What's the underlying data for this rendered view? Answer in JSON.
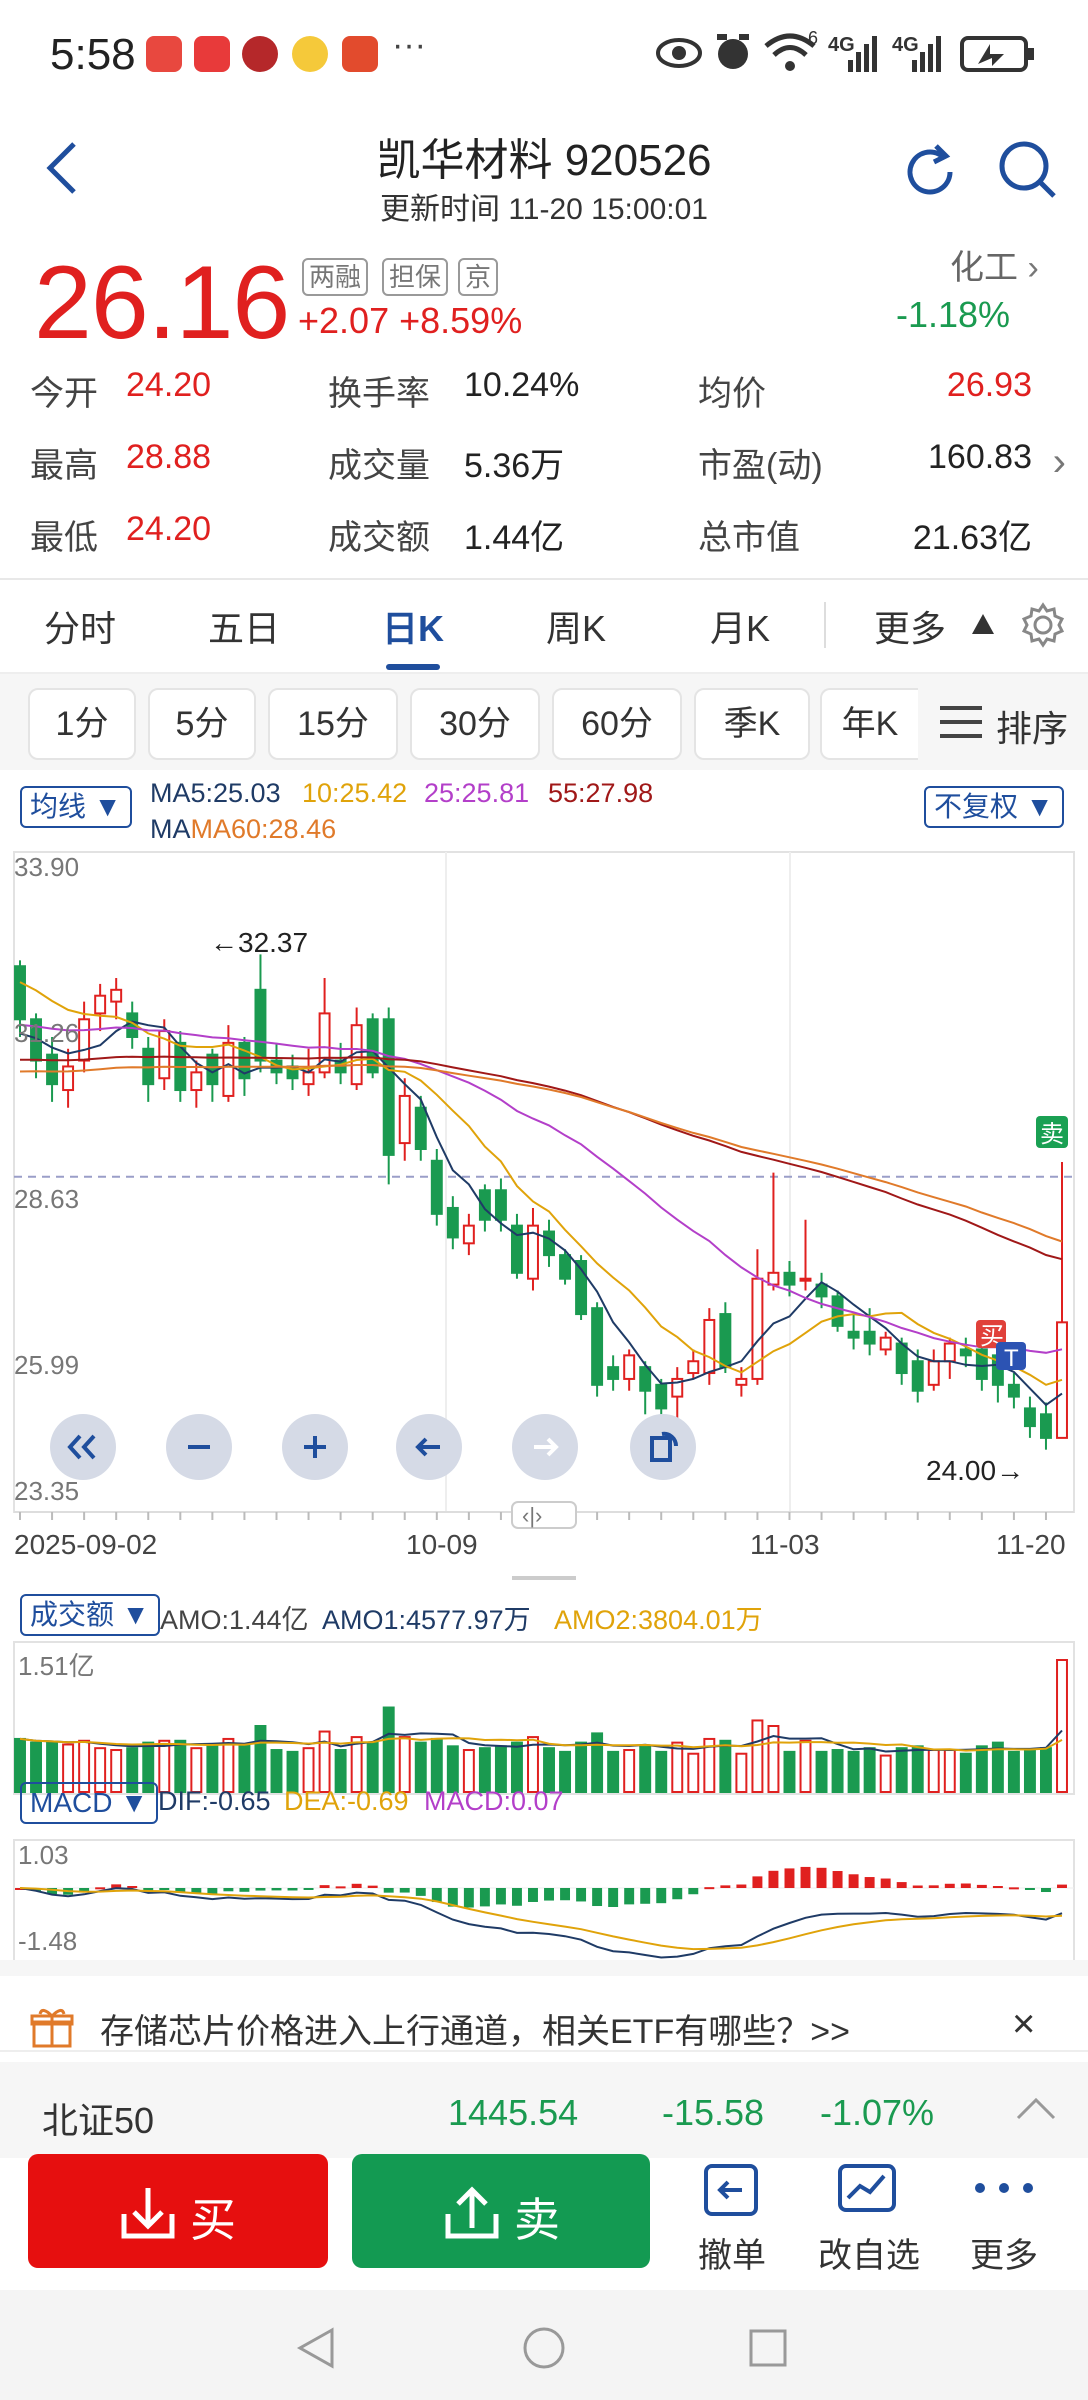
{
  "status_bar": {
    "time": "5:58",
    "more": "···",
    "signal_a": "6",
    "net_a": "4G",
    "net_b": "4G"
  },
  "header": {
    "title": "凯华材料 920526",
    "update_label": "更新时间 11-20 15:00:01"
  },
  "quote": {
    "price": "26.16",
    "tags": [
      "两融",
      "担保",
      "京"
    ],
    "change": "+2.07",
    "change_pct": "+8.59%",
    "sector": "化工",
    "sector_change": "-1.18%",
    "stats": [
      {
        "label": "今开",
        "value": "24.20",
        "tone": "red"
      },
      {
        "label": "换手率",
        "value": "10.24%",
        "tone": "dark"
      },
      {
        "label": "均价",
        "value": "26.93",
        "tone": "red"
      },
      {
        "label": "最高",
        "value": "28.88",
        "tone": "red"
      },
      {
        "label": "成交量",
        "value": "5.36万",
        "tone": "dark"
      },
      {
        "label": "市盈(动)",
        "value": "160.83",
        "tone": "dark"
      },
      {
        "label": "最低",
        "value": "24.20",
        "tone": "red"
      },
      {
        "label": "成交额",
        "value": "1.44亿",
        "tone": "dark"
      },
      {
        "label": "总市值",
        "value": "21.63亿",
        "tone": "dark"
      }
    ]
  },
  "tabs": [
    "分时",
    "五日",
    "日K",
    "周K",
    "月K",
    "更多"
  ],
  "periods": [
    "1分",
    "5分",
    "15分",
    "30分",
    "60分",
    "季K",
    "年K"
  ],
  "sort_label": "排序",
  "ma_bar": {
    "dropdown": "均线 ▼",
    "ma5": "MA5:25.03",
    "ma10": "10:25.42",
    "ma25": "25:25.81",
    "ma55": "55:27.98",
    "ma60": "MA60:28.46",
    "adjust": "不复权 ▼"
  },
  "chart_data": {
    "type": "candlestick",
    "y_ticks": [
      "33.90",
      "31.26",
      "28.63",
      "25.99",
      "23.35"
    ],
    "ylim": [
      23.35,
      33.9
    ],
    "x_ticks": [
      "2025-09-02",
      "10-09",
      "11-03",
      "11-20"
    ],
    "max_label": "←32.37",
    "min_label": "24.00→",
    "reference_price": 28.63,
    "buy_marker": "买",
    "sell_marker": "卖",
    "t_marker": "T",
    "candles": [
      [
        32.2,
        31.3,
        32.3,
        31.0
      ],
      [
        31.3,
        30.6,
        31.4,
        30.3
      ],
      [
        30.7,
        30.2,
        31.0,
        29.9
      ],
      [
        30.1,
        30.5,
        30.8,
        29.8
      ],
      [
        30.6,
        31.3,
        31.6,
        30.4
      ],
      [
        31.4,
        31.7,
        31.9,
        31.1
      ],
      [
        31.6,
        31.8,
        32.0,
        31.3
      ],
      [
        31.4,
        31.0,
        31.6,
        30.8
      ],
      [
        30.8,
        30.2,
        31.0,
        29.9
      ],
      [
        30.3,
        31.1,
        31.3,
        30.1
      ],
      [
        30.9,
        30.1,
        31.1,
        29.9
      ],
      [
        30.1,
        30.4,
        30.6,
        29.8
      ],
      [
        30.7,
        30.2,
        30.8,
        29.9
      ],
      [
        30.0,
        30.9,
        31.2,
        29.9
      ],
      [
        30.9,
        30.3,
        31.0,
        30.0
      ],
      [
        31.8,
        30.6,
        32.4,
        30.4
      ],
      [
        30.6,
        30.4,
        30.9,
        30.2
      ],
      [
        30.5,
        30.3,
        30.7,
        30.1
      ],
      [
        30.2,
        30.4,
        30.8,
        30.0
      ],
      [
        30.4,
        31.4,
        32.0,
        30.3
      ],
      [
        30.6,
        30.4,
        30.9,
        30.2
      ],
      [
        30.2,
        31.2,
        31.5,
        30.1
      ],
      [
        31.3,
        30.4,
        31.4,
        30.3
      ],
      [
        31.3,
        29.0,
        31.5,
        28.5
      ],
      [
        29.2,
        30.0,
        30.3,
        28.9
      ],
      [
        29.8,
        29.1,
        30.0,
        28.9
      ],
      [
        28.9,
        28.0,
        29.1,
        27.8
      ],
      [
        28.1,
        27.6,
        28.3,
        27.4
      ],
      [
        27.5,
        27.8,
        28.0,
        27.3
      ],
      [
        28.4,
        27.9,
        28.5,
        27.7
      ],
      [
        28.4,
        27.9,
        28.6,
        27.7
      ],
      [
        27.8,
        27.0,
        28.0,
        26.9
      ],
      [
        26.9,
        27.8,
        28.1,
        26.7
      ],
      [
        27.7,
        27.3,
        27.9,
        27.1
      ],
      [
        27.3,
        26.9,
        27.4,
        26.8
      ],
      [
        27.2,
        26.3,
        27.3,
        26.2
      ],
      [
        26.4,
        25.1,
        26.5,
        24.9
      ],
      [
        25.4,
        25.2,
        25.6,
        25.0
      ],
      [
        25.2,
        25.6,
        25.7,
        25.0
      ],
      [
        25.4,
        25.0,
        25.5,
        24.6
      ],
      [
        25.1,
        24.7,
        25.2,
        24.6
      ],
      [
        24.9,
        25.2,
        25.4,
        24.3
      ],
      [
        25.3,
        25.5,
        25.7,
        25.2
      ],
      [
        25.3,
        26.2,
        26.4,
        25.1
      ],
      [
        26.3,
        25.4,
        26.5,
        25.3
      ],
      [
        25.1,
        25.2,
        25.4,
        24.9
      ],
      [
        25.2,
        26.9,
        27.4,
        25.1
      ],
      [
        26.8,
        27.0,
        28.7,
        26.7
      ],
      [
        27.0,
        26.8,
        27.2,
        26.6
      ],
      [
        26.9,
        26.9,
        27.9,
        26.7
      ],
      [
        26.8,
        26.6,
        27.0,
        26.4
      ],
      [
        26.6,
        26.1,
        26.7,
        26.0
      ],
      [
        26.0,
        25.9,
        26.3,
        25.7
      ],
      [
        26.0,
        25.8,
        26.4,
        25.6
      ],
      [
        25.7,
        25.9,
        26.0,
        25.6
      ],
      [
        25.8,
        25.3,
        25.9,
        25.1
      ],
      [
        25.5,
        25.0,
        25.7,
        24.8
      ],
      [
        25.1,
        25.5,
        25.7,
        25.0
      ],
      [
        25.5,
        25.8,
        25.9,
        25.2
      ],
      [
        25.7,
        25.6,
        25.9,
        25.4
      ],
      [
        25.7,
        25.2,
        25.9,
        25.0
      ],
      [
        25.6,
        25.1,
        25.9,
        24.8
      ],
      [
        25.1,
        24.9,
        25.3,
        24.7
      ],
      [
        24.7,
        24.4,
        24.9,
        24.2
      ],
      [
        24.6,
        24.2,
        24.8,
        24.0
      ],
      [
        24.2,
        26.16,
        28.88,
        24.2
      ]
    ]
  },
  "amo_bar": {
    "dropdown": "成交额 ▼",
    "amo": "AMO:1.44亿",
    "amo1": "AMO1:4577.97万",
    "amo2": "AMO2:3804.01万",
    "scale": "1.51亿"
  },
  "macd_bar": {
    "dropdown": "MACD ▼",
    "dif": "DIF:-0.65",
    "dea": "DEA:-0.69",
    "macd": "MACD:0.07",
    "top": "1.03",
    "bottom": "-1.48"
  },
  "banner": {
    "text": "存储芯片价格进入上行通道，相关ETF有哪些？>>",
    "close": "×"
  },
  "index": {
    "name": "北证50",
    "value": "1445.54",
    "change": "-15.58",
    "change_pct": "-1.07%"
  },
  "actions": {
    "buy": "买",
    "sell": "卖",
    "cancel": "撤单",
    "watchlist": "改自选",
    "more": "更多"
  },
  "colors": {
    "up": "#e0201f",
    "down": "#1a9a50",
    "accent": "#1f4e9d"
  }
}
